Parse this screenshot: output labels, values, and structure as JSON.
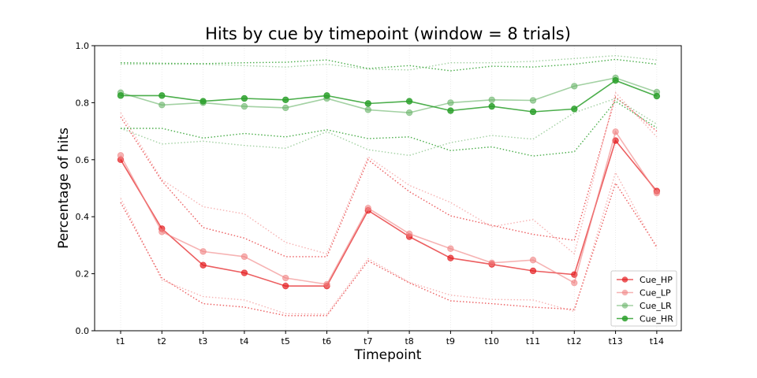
{
  "chart_data": {
    "type": "line",
    "title": "Hits by cue by timepoint (window = 8 trials)",
    "xlabel": "Timepoint",
    "ylabel": "Percentage of hits",
    "ylim": [
      0,
      1.0
    ],
    "yticks": [
      "0.0",
      "0.2",
      "0.4",
      "0.6",
      "0.8",
      "1.0"
    ],
    "categories": [
      "t1",
      "t2",
      "t3",
      "t4",
      "t5",
      "t6",
      "t7",
      "t8",
      "t9",
      "t10",
      "t11",
      "t12",
      "t13",
      "t14"
    ],
    "grid": "vertical dotted",
    "legend_position": "lower-right",
    "series": [
      {
        "name": "Cue_HP",
        "color": "#e41a1c",
        "alpha": 0.7,
        "values": [
          0.6,
          0.358,
          0.23,
          0.203,
          0.157,
          0.157,
          0.422,
          0.33,
          0.255,
          0.233,
          0.21,
          0.197,
          0.667,
          0.49
        ],
        "upper": [
          0.75,
          0.525,
          0.362,
          0.325,
          0.26,
          0.26,
          0.6,
          0.488,
          0.403,
          0.37,
          0.338,
          0.317,
          0.82,
          0.7
        ],
        "lower": [
          0.45,
          0.185,
          0.095,
          0.083,
          0.053,
          0.053,
          0.245,
          0.168,
          0.105,
          0.095,
          0.083,
          0.075,
          0.518,
          0.295
        ]
      },
      {
        "name": "Cue_LP",
        "color": "#f08080",
        "alpha": 0.6,
        "values": [
          0.615,
          0.347,
          0.278,
          0.26,
          0.185,
          0.163,
          0.43,
          0.34,
          0.288,
          0.238,
          0.248,
          0.168,
          0.698,
          0.483
        ],
        "upper": [
          0.765,
          0.53,
          0.435,
          0.41,
          0.31,
          0.27,
          0.61,
          0.51,
          0.45,
          0.365,
          0.39,
          0.27,
          0.835,
          0.68
        ],
        "lower": [
          0.465,
          0.178,
          0.12,
          0.108,
          0.06,
          0.058,
          0.253,
          0.17,
          0.125,
          0.11,
          0.108,
          0.068,
          0.555,
          0.288
        ]
      },
      {
        "name": "Cue_LR",
        "color": "#66b266",
        "alpha": 0.6,
        "values": [
          0.835,
          0.792,
          0.8,
          0.787,
          0.782,
          0.815,
          0.775,
          0.765,
          0.8,
          0.81,
          0.808,
          0.858,
          0.887,
          0.837
        ],
        "upper": [
          0.935,
          0.935,
          0.935,
          0.93,
          0.925,
          0.935,
          0.918,
          0.915,
          0.94,
          0.94,
          0.945,
          0.955,
          0.965,
          0.95
        ],
        "lower": [
          0.71,
          0.655,
          0.665,
          0.65,
          0.64,
          0.698,
          0.635,
          0.615,
          0.66,
          0.685,
          0.672,
          0.765,
          0.815,
          0.725
        ]
      },
      {
        "name": "Cue_HR",
        "color": "#2ca02c",
        "alpha": 0.85,
        "values": [
          0.825,
          0.825,
          0.805,
          0.815,
          0.81,
          0.825,
          0.797,
          0.805,
          0.772,
          0.787,
          0.768,
          0.778,
          0.878,
          0.823
        ],
        "upper": [
          0.94,
          0.938,
          0.937,
          0.94,
          0.942,
          0.95,
          0.92,
          0.93,
          0.912,
          0.928,
          0.925,
          0.935,
          0.952,
          0.935
        ],
        "lower": [
          0.71,
          0.71,
          0.676,
          0.692,
          0.68,
          0.705,
          0.674,
          0.68,
          0.632,
          0.645,
          0.613,
          0.628,
          0.805,
          0.712
        ]
      }
    ]
  }
}
